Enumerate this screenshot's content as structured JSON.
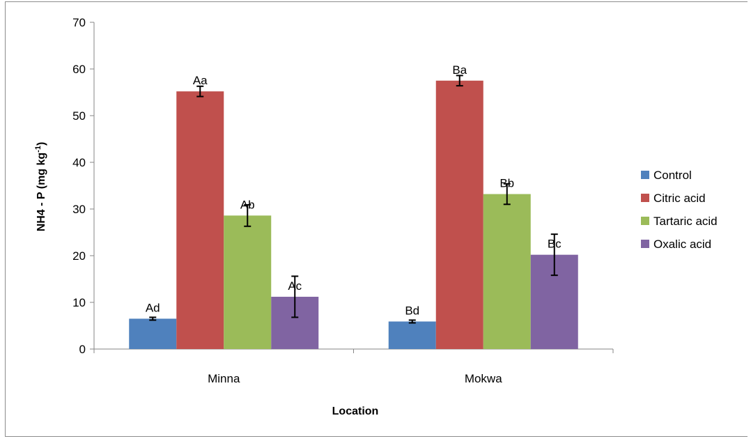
{
  "chart_data": {
    "type": "bar",
    "title": "",
    "xlabel": "Location",
    "ylabel": "NH4 - P (mg kg",
    "ylabel_sup": "-1",
    "ylabel_end": ")",
    "ylim": [
      0,
      70
    ],
    "yticks": [
      "0",
      "10",
      "20",
      "30",
      "40",
      "50",
      "60",
      "70"
    ],
    "grid": false,
    "legend_position": "right",
    "categories": [
      "Minna",
      "Mokwa"
    ],
    "series": [
      {
        "name": "Control",
        "color": "#4F81BD",
        "values": [
          6.5,
          5.9
        ],
        "errors": [
          0.3,
          0.3
        ],
        "labels": [
          "Ad",
          "Bd"
        ]
      },
      {
        "name": "Citric acid",
        "color": "#C0504D",
        "values": [
          55.2,
          57.5
        ],
        "errors": [
          1.1,
          1.1
        ],
        "labels": [
          "Aa",
          "Ba"
        ]
      },
      {
        "name": "Tartaric acid",
        "color": "#9BBB59",
        "values": [
          28.6,
          33.2
        ],
        "errors": [
          2.3,
          2.2
        ],
        "labels": [
          "Ab",
          "Bb"
        ]
      },
      {
        "name": "Oxalic acid",
        "color": "#8064A2",
        "values": [
          11.2,
          20.2
        ],
        "errors": [
          4.4,
          4.4
        ],
        "labels": [
          "Ac",
          "Bc"
        ]
      }
    ]
  }
}
